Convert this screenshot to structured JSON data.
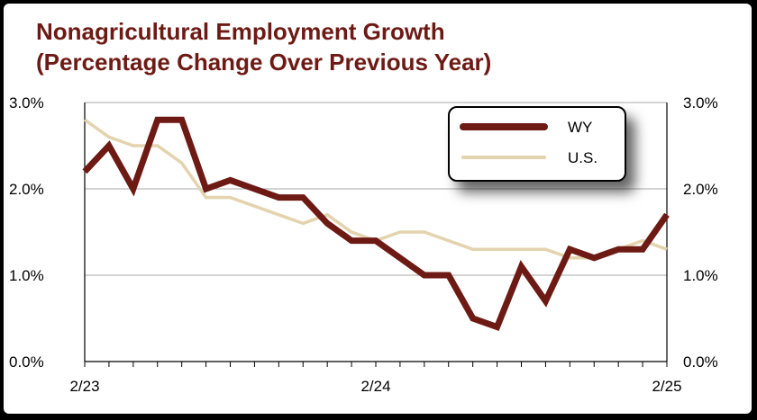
{
  "colors": {
    "wy": "#6e1a14",
    "us": "#e3d3ae",
    "title": "#6e1a14",
    "grid": "#a8a8a8"
  },
  "chart_data": {
    "type": "line",
    "title": "Nonagricultural Employment Growth",
    "subtitle": "(Percentage Change Over Previous Year)",
    "xlabel": "",
    "ylabel": "",
    "x": [
      "2/23",
      "3/23",
      "4/23",
      "5/23",
      "6/23",
      "7/23",
      "8/23",
      "9/23",
      "10/23",
      "11/23",
      "12/23",
      "1/24",
      "2/24",
      "3/24",
      "4/24",
      "5/24",
      "6/24",
      "7/24",
      "8/24",
      "9/24",
      "10/24",
      "11/24",
      "12/24",
      "1/25",
      "2/25"
    ],
    "x_tick_labels": [
      "2/23",
      "2/24",
      "2/25"
    ],
    "x_tick_index": [
      0,
      12,
      24
    ],
    "y_tick_labels": [
      "0.0%",
      "1.0%",
      "2.0%",
      "3.0%"
    ],
    "ylim": [
      0,
      3
    ],
    "grid": true,
    "legend_position": "top-right",
    "series": [
      {
        "name": "WY",
        "values": [
          2.2,
          2.5,
          2.0,
          2.8,
          2.8,
          2.0,
          2.1,
          2.0,
          1.9,
          1.9,
          1.6,
          1.4,
          1.4,
          1.2,
          1.0,
          1.0,
          0.5,
          0.4,
          1.1,
          0.7,
          1.3,
          1.2,
          1.3,
          1.3,
          1.7
        ]
      },
      {
        "name": "U.S.",
        "values": [
          2.8,
          2.6,
          2.5,
          2.5,
          2.3,
          1.9,
          1.9,
          1.8,
          1.7,
          1.6,
          1.7,
          1.5,
          1.4,
          1.5,
          1.5,
          1.4,
          1.3,
          1.3,
          1.3,
          1.3,
          1.2,
          1.2,
          1.3,
          1.4,
          1.3
        ]
      }
    ]
  }
}
